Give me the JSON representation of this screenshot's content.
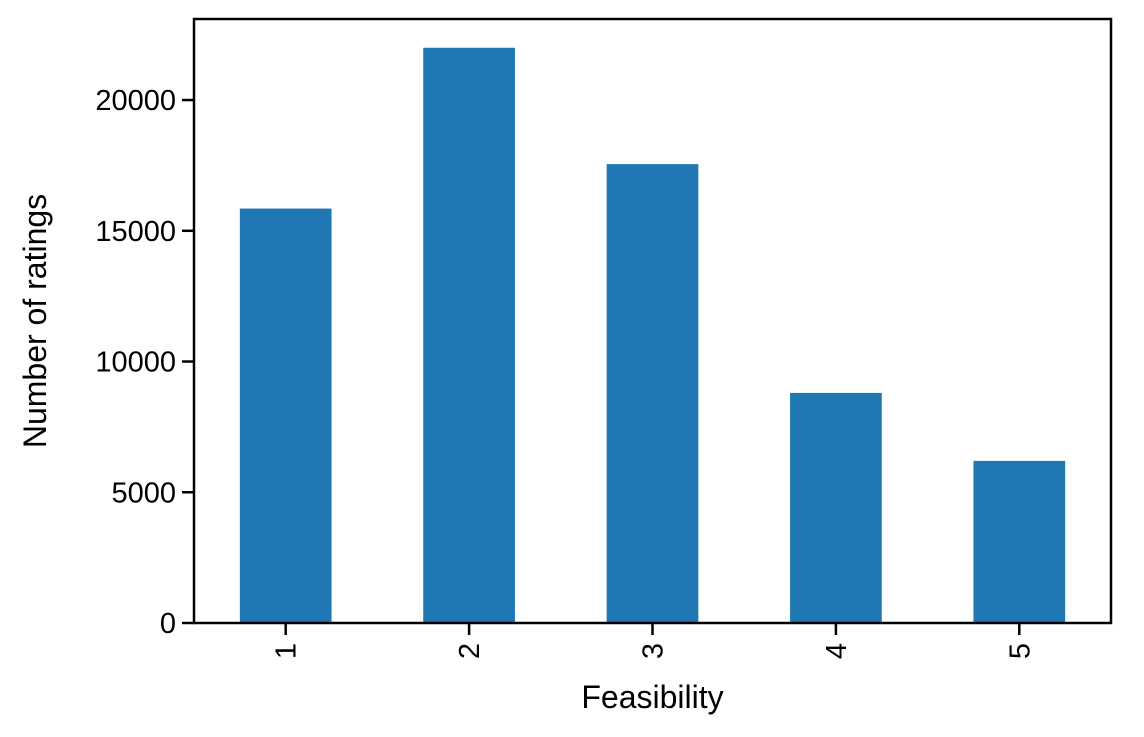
{
  "chart_data": {
    "type": "bar",
    "title": "",
    "xlabel": "Feasibility",
    "ylabel": "Number of ratings",
    "categories": [
      "1",
      "2",
      "3",
      "4",
      "5"
    ],
    "values": [
      15850,
      22000,
      17550,
      8800,
      6200
    ],
    "ylim": [
      0,
      23100
    ],
    "yticks": [
      0,
      5000,
      10000,
      15000,
      20000
    ],
    "ytick_labels": [
      "0",
      "5000",
      "10000",
      "15000",
      "20000"
    ],
    "xtick_rotation": 90,
    "grid": false,
    "legend": "none",
    "bar_color": "#1f77b4"
  }
}
